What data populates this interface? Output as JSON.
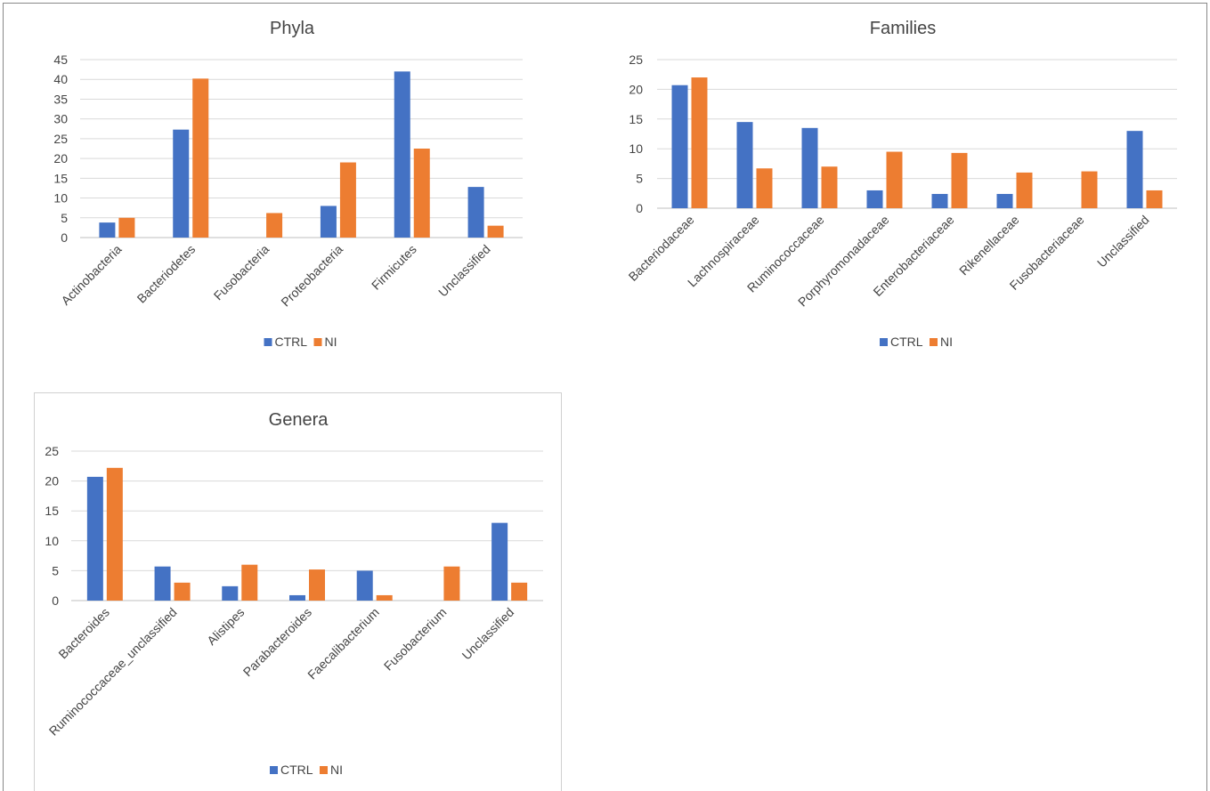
{
  "legend_colors": {
    "ctrl": "#4472C4",
    "ni": "#ED7D31"
  },
  "charts": [
    {
      "type": "bar",
      "title": "Phyla",
      "categories": [
        "Actinobacteria",
        "Bacteriodetes",
        "Fusobacteria",
        "Proteobacteria",
        "Firmicutes",
        "Unclassified"
      ],
      "series": [
        {
          "name": "CTRL",
          "values": [
            3.8,
            27.3,
            0,
            8.0,
            42.0,
            12.8
          ]
        },
        {
          "name": "NI",
          "values": [
            5.0,
            40.2,
            6.2,
            19.0,
            22.5,
            3.0
          ]
        }
      ],
      "ylim": [
        0,
        45
      ],
      "yticks": [
        0,
        5,
        10,
        15,
        20,
        25,
        30,
        35,
        40,
        45
      ],
      "grid": true,
      "legend": "bottom"
    },
    {
      "type": "bar",
      "title": "Families",
      "categories": [
        "Bacteriodaceae",
        "Lachnospiraceae",
        "Ruminococcaceae",
        "Porphyromonadaceae",
        "Enterobacteriaceae",
        "Rikenellaceae",
        "Fusobacteriaceae",
        "Unclassified"
      ],
      "series": [
        {
          "name": "CTRL",
          "values": [
            20.7,
            14.5,
            13.5,
            3.0,
            2.4,
            2.4,
            0,
            13.0
          ]
        },
        {
          "name": "NI",
          "values": [
            22.0,
            6.7,
            7.0,
            9.5,
            9.3,
            6.0,
            6.2,
            3.0
          ]
        }
      ],
      "ylim": [
        0,
        25
      ],
      "yticks": [
        0,
        5,
        10,
        15,
        20,
        25
      ],
      "grid": true,
      "legend": "bottom"
    },
    {
      "type": "bar",
      "title": "Genera",
      "categories": [
        "Bacteroides",
        "Ruminococcaceae_unclassified",
        "Alistipes",
        "Parabacteroides",
        "Faecalibacterium",
        "Fusobacterium",
        "Unclassified"
      ],
      "series": [
        {
          "name": "CTRL",
          "values": [
            20.7,
            5.7,
            2.4,
            0.9,
            5.0,
            0,
            13.0
          ]
        },
        {
          "name": "NI",
          "values": [
            22.2,
            3.0,
            6.0,
            5.2,
            0.9,
            5.7,
            3.0
          ]
        }
      ],
      "ylim": [
        0,
        25
      ],
      "yticks": [
        0,
        5,
        10,
        15,
        20,
        25
      ],
      "grid": true,
      "legend": "bottom"
    }
  ]
}
